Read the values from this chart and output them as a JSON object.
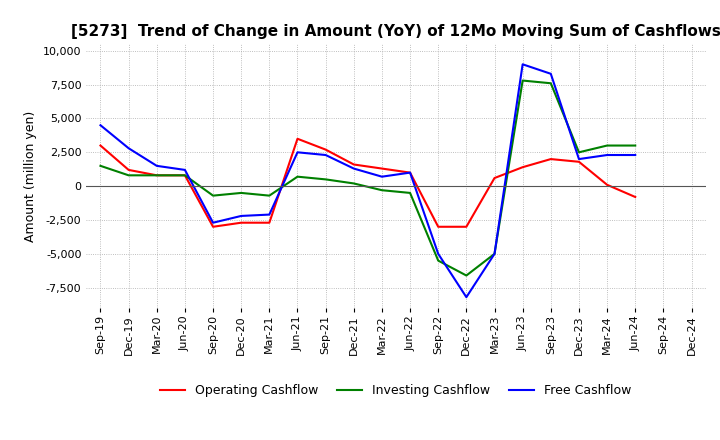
{
  "title": "[5273]  Trend of Change in Amount (YoY) of 12Mo Moving Sum of Cashflows",
  "ylabel": "Amount (million yen)",
  "ylim": [
    -9000,
    10500
  ],
  "yticks": [
    -7500,
    -5000,
    -2500,
    0,
    2500,
    5000,
    7500,
    10000
  ],
  "x_labels": [
    "Sep-19",
    "Dec-19",
    "Mar-20",
    "Jun-20",
    "Sep-20",
    "Dec-20",
    "Mar-21",
    "Jun-21",
    "Sep-21",
    "Dec-21",
    "Mar-22",
    "Jun-22",
    "Sep-22",
    "Dec-22",
    "Mar-23",
    "Jun-23",
    "Sep-23",
    "Dec-23",
    "Mar-24",
    "Jun-24",
    "Sep-24",
    "Dec-24"
  ],
  "operating": [
    3000,
    1200,
    800,
    800,
    -3000,
    -2700,
    -2700,
    3500,
    2700,
    1600,
    1300,
    1000,
    -3000,
    -3000,
    600,
    1400,
    2000,
    1800,
    100,
    -800,
    null,
    null
  ],
  "investing": [
    1500,
    800,
    800,
    800,
    -700,
    -500,
    -700,
    700,
    500,
    200,
    -300,
    -500,
    -5500,
    -6600,
    -5000,
    7800,
    7600,
    2500,
    3000,
    3000,
    null,
    null
  ],
  "free": [
    4500,
    2800,
    1500,
    1200,
    -2700,
    -2200,
    -2100,
    2500,
    2300,
    1300,
    700,
    1000,
    -5000,
    -8200,
    -5000,
    9000,
    8300,
    2000,
    2300,
    2300,
    null,
    null
  ],
  "op_color": "#ff0000",
  "inv_color": "#008000",
  "free_color": "#0000ff",
  "line_width": 1.5,
  "background_color": "#ffffff",
  "grid_color": "#aaaaaa",
  "title_fontsize": 11,
  "tick_fontsize": 8,
  "ylabel_fontsize": 9,
  "legend_labels": [
    "Operating Cashflow",
    "Investing Cashflow",
    "Free Cashflow"
  ]
}
